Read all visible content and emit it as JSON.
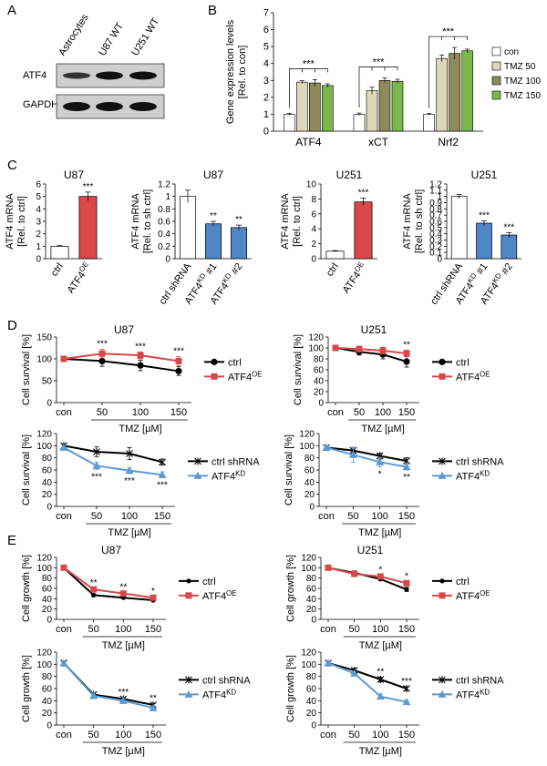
{
  "panel_labels": {
    "A": "A",
    "B": "B",
    "C": "C",
    "D": "D",
    "E": "E"
  },
  "blot": {
    "lanes": [
      "Astrocytes",
      "U87 WT",
      "U251 WT"
    ],
    "rows": [
      "ATF4",
      "GAPDH"
    ]
  },
  "colors": {
    "white": "#ffffff",
    "tmz50": "#dcd7b8",
    "tmz100": "#8f8a5c",
    "tmz150": "#7ab84a",
    "red": "#d9474a",
    "blue": "#4f86c6",
    "ctrl": "#000000",
    "kd": "#5b9bd5",
    "oe": "#d9474a"
  },
  "chart_data": [
    {
      "id": "B",
      "type": "bar",
      "ylabel_lines": [
        "Gene expression levels",
        "[Rel. to con]"
      ],
      "ylim": [
        0,
        7
      ],
      "yticks": [
        0,
        1,
        2,
        3,
        4,
        5,
        6,
        7
      ],
      "categories": [
        "ATF4",
        "xCT",
        "Nrf2"
      ],
      "series": [
        {
          "name": "con",
          "values": [
            1,
            1,
            1
          ],
          "err": [
            0.05,
            0.07,
            0.05
          ]
        },
        {
          "name": "TMZ 50",
          "values": [
            2.9,
            2.4,
            4.3
          ],
          "err": [
            0.08,
            0.2,
            0.2
          ]
        },
        {
          "name": "TMZ 100",
          "values": [
            2.85,
            3.0,
            4.6
          ],
          "err": [
            0.2,
            0.15,
            0.35
          ]
        },
        {
          "name": "TMZ 150",
          "values": [
            2.7,
            2.95,
            4.75
          ],
          "err": [
            0.1,
            0.12,
            0.1
          ]
        }
      ],
      "significance": [
        "***",
        "***",
        "***"
      ]
    },
    {
      "id": "C1",
      "type": "bar",
      "title": "U87",
      "ylabel_lines": [
        "ATF4 mRNA",
        "[Rel. to ctrl]"
      ],
      "ylim": [
        0,
        6
      ],
      "yticks": [
        0,
        1,
        2,
        3,
        4,
        5,
        6
      ],
      "categories": [
        "ctrl",
        "ATF4OE"
      ],
      "tick_labels": [
        {
          "main": "ctrl",
          "sup": ""
        },
        {
          "main": "ATF4",
          "sup": "OE"
        }
      ],
      "values": [
        1,
        5
      ],
      "err": [
        0.05,
        0.35
      ],
      "significance": [
        "",
        "***"
      ]
    },
    {
      "id": "C2",
      "type": "bar",
      "title": "U87",
      "ylabel_lines": [
        "ATF4 mRNA",
        "[Rel. to sh ctrl]"
      ],
      "ylim": [
        0,
        1.2
      ],
      "yticks": [
        0,
        0.2,
        0.4,
        0.6,
        0.8,
        1,
        1.2
      ],
      "categories": [
        "ctrl shRNA",
        "ATF4KD #1",
        "ATF4KD #2"
      ],
      "tick_labels": [
        {
          "main": "ctrl shRNA",
          "sup": ""
        },
        {
          "main": "ATF4",
          "sup": "KD",
          "suffix": " #1"
        },
        {
          "main": "ATF4",
          "sup": "KD",
          "suffix": " #2"
        }
      ],
      "values": [
        1,
        0.56,
        0.5
      ],
      "err": [
        0.1,
        0.04,
        0.04
      ],
      "significance": [
        "",
        "**",
        "**"
      ]
    },
    {
      "id": "C3",
      "type": "bar",
      "title": "U251",
      "ylabel_lines": [
        "ATF4 mRNA",
        "[Rel. to ctrl]"
      ],
      "ylim": [
        0,
        10
      ],
      "yticks": [
        0,
        2,
        4,
        6,
        8,
        10
      ],
      "categories": [
        "ctrl",
        "ATF4OE"
      ],
      "tick_labels": [
        {
          "main": "ctrl",
          "sup": ""
        },
        {
          "main": "ATF4",
          "sup": "OE"
        }
      ],
      "values": [
        1,
        7.6
      ],
      "err": [
        0.08,
        0.5
      ],
      "significance": [
        "",
        "***"
      ]
    },
    {
      "id": "C4",
      "type": "bar",
      "title": "U251",
      "ylabel_lines": [
        "ATF4 mRNA",
        "[Rel. to sh ctrl]"
      ],
      "ylim": [
        0,
        1.2
      ],
      "yticks": [
        0,
        0.1,
        0.2,
        0.3,
        0.4,
        0.5,
        0.6,
        0.7,
        0.8,
        0.9,
        1,
        1.1,
        1.2
      ],
      "categories": [
        "ctrl shRNA",
        "ATF4KD #1",
        "ATF4KD #2"
      ],
      "tick_labels": [
        {
          "main": "ctrl shRNA",
          "sup": ""
        },
        {
          "main": "ATF4",
          "sup": "KD",
          "suffix": " #1"
        },
        {
          "main": "ATF4",
          "sup": "KD",
          "suffix": " #2"
        }
      ],
      "values": [
        1,
        0.57,
        0.38
      ],
      "err": [
        0.03,
        0.04,
        0.04
      ],
      "significance": [
        "",
        "***",
        "***"
      ]
    },
    {
      "id": "D1",
      "type": "line",
      "title": "U87",
      "ylabel": "Cell survival [%]",
      "ylim": [
        0,
        150
      ],
      "yticks": [
        0,
        50,
        100,
        150
      ],
      "x": [
        "con",
        "50",
        "100",
        "150"
      ],
      "xlabel": "TMZ [µM]",
      "series": [
        {
          "name": "ctrl",
          "values": [
            100,
            95,
            85,
            72
          ],
          "err": [
            3,
            12,
            12,
            10
          ],
          "marker": "circle",
          "color": "#000000"
        },
        {
          "name": "ATF4OE",
          "values": [
            100,
            112,
            108,
            95
          ],
          "err": [
            3,
            10,
            8,
            10
          ],
          "marker": "square",
          "color": "#d9474a"
        }
      ],
      "legend": [
        {
          "main": "ctrl",
          "sup": ""
        },
        {
          "main": "ATF4",
          "sup": "OE"
        }
      ],
      "significance": [
        "",
        "***",
        "***",
        "***"
      ],
      "sig_pos": "above"
    },
    {
      "id": "D2",
      "type": "line",
      "title": "U251",
      "ylabel": "Cell survival [%]",
      "ylim": [
        0,
        120
      ],
      "yticks": [
        0,
        20,
        40,
        60,
        80,
        100,
        120
      ],
      "x": [
        "con",
        "50",
        "100",
        "150"
      ],
      "xlabel": "TMZ [µM]",
      "series": [
        {
          "name": "ctrl",
          "values": [
            100,
            93,
            88,
            75
          ],
          "err": [
            3,
            6,
            8,
            10
          ],
          "marker": "circle",
          "color": "#000000"
        },
        {
          "name": "ATF4OE",
          "values": [
            100,
            98,
            95,
            90
          ],
          "err": [
            3,
            5,
            6,
            6
          ],
          "marker": "square",
          "color": "#d9474a"
        }
      ],
      "legend": [
        {
          "main": "ctrl",
          "sup": ""
        },
        {
          "main": "ATF4",
          "sup": "OE"
        }
      ],
      "significance": [
        "",
        "",
        "",
        "**"
      ],
      "sig_pos": "above"
    },
    {
      "id": "D3",
      "type": "line",
      "ylabel": "Cell survival [%]",
      "ylim": [
        0,
        120
      ],
      "yticks": [
        0,
        20,
        40,
        60,
        80,
        100,
        120
      ],
      "x": [
        "con",
        "50",
        "100",
        "150"
      ],
      "xlabel": "TMZ [µM]",
      "series": [
        {
          "name": "ctrl shRNA",
          "values": [
            100,
            90,
            87,
            73
          ],
          "err": [
            3,
            8,
            10,
            5
          ],
          "marker": "x",
          "color": "#000000"
        },
        {
          "name": "ATF4KD",
          "values": [
            97,
            67,
            59,
            52
          ],
          "err": [
            3,
            6,
            5,
            5
          ],
          "marker": "triangle",
          "color": "#5b9bd5"
        }
      ],
      "legend": [
        {
          "main": "ctrl shRNA",
          "sup": ""
        },
        {
          "main": "ATF4",
          "sup": "KD"
        }
      ],
      "significance": [
        "",
        "***",
        "***",
        "***"
      ],
      "sig_pos": "below"
    },
    {
      "id": "D4",
      "type": "line",
      "ylabel": "Cell survival [%]",
      "ylim": [
        0,
        120
      ],
      "yticks": [
        0,
        20,
        40,
        60,
        80,
        100,
        120
      ],
      "x": [
        "con",
        "50",
        "100",
        "150"
      ],
      "xlabel": "TMZ [µM]",
      "series": [
        {
          "name": "ctrl shRNA",
          "values": [
            97,
            92,
            83,
            75
          ],
          "err": [
            3,
            5,
            5,
            5
          ],
          "marker": "x",
          "color": "#000000"
        },
        {
          "name": "ATF4KD",
          "values": [
            97,
            85,
            73,
            65
          ],
          "err": [
            3,
            12,
            8,
            5
          ],
          "marker": "triangle",
          "color": "#5b9bd5"
        }
      ],
      "legend": [
        {
          "main": "ctrl shRNA",
          "sup": ""
        },
        {
          "main": "ATF4",
          "sup": "KD"
        }
      ],
      "significance": [
        "",
        "",
        "*",
        "**"
      ],
      "sig_pos": "below"
    },
    {
      "id": "E1",
      "type": "line",
      "title": "U87",
      "ylabel": "Cell growth [%]",
      "ylim": [
        0,
        120
      ],
      "yticks": [
        0,
        20,
        40,
        60,
        80,
        100,
        120
      ],
      "x": [
        "con",
        "50",
        "100",
        "150"
      ],
      "xlabel": "TMZ [µM]",
      "series": [
        {
          "name": "ctrl",
          "values": [
            100,
            47,
            42,
            37
          ],
          "err": [
            2,
            2,
            2,
            2
          ],
          "marker": "dot",
          "color": "#000000"
        },
        {
          "name": "ATF4OE",
          "values": [
            100,
            58,
            50,
            42
          ],
          "err": [
            2,
            2,
            2,
            2
          ],
          "marker": "square",
          "color": "#d9474a"
        }
      ],
      "legend": [
        {
          "main": "ctrl",
          "sup": ""
        },
        {
          "main": "ATF4",
          "sup": "OE"
        }
      ],
      "significance": [
        "",
        "**",
        "**",
        "*"
      ],
      "sig_pos": "above"
    },
    {
      "id": "E2",
      "type": "line",
      "title": "U251",
      "ylabel": "Cell growth [%]",
      "ylim": [
        0,
        120
      ],
      "yticks": [
        0,
        20,
        40,
        60,
        80,
        100,
        120
      ],
      "x": [
        "con",
        "50",
        "100",
        "150"
      ],
      "xlabel": "TMZ [µM]",
      "series": [
        {
          "name": "ctrl",
          "values": [
            100,
            90,
            78,
            58
          ],
          "err": [
            3,
            4,
            3,
            4
          ],
          "marker": "dot",
          "color": "#000000"
        },
        {
          "name": "ATF4OE",
          "values": [
            100,
            88,
            83,
            70
          ],
          "err": [
            3,
            4,
            3,
            3
          ],
          "marker": "square",
          "color": "#d9474a"
        }
      ],
      "legend": [
        {
          "main": "ctrl",
          "sup": ""
        },
        {
          "main": "ATF4",
          "sup": "OE"
        }
      ],
      "significance": [
        "",
        "",
        "*",
        "*"
      ],
      "sig_pos": "above"
    },
    {
      "id": "E3",
      "type": "line",
      "ylabel": "Cell growth [%]",
      "ylim": [
        0,
        120
      ],
      "yticks": [
        0,
        20,
        40,
        60,
        80,
        100,
        120
      ],
      "x": [
        "con",
        "50",
        "100",
        "150"
      ],
      "xlabel": "TMZ [µM]",
      "series": [
        {
          "name": "ctrl shRNA",
          "values": [
            102,
            50,
            43,
            33
          ],
          "err": [
            2,
            2,
            2,
            2
          ],
          "marker": "x",
          "color": "#000000"
        },
        {
          "name": "ATF4KD",
          "values": [
            102,
            48,
            40,
            28
          ],
          "err": [
            2,
            2,
            2,
            2
          ],
          "marker": "triangle",
          "color": "#5b9bd5"
        }
      ],
      "legend": [
        {
          "main": "ctrl shRNA",
          "sup": ""
        },
        {
          "main": "ATF4",
          "sup": "KD"
        }
      ],
      "significance": [
        "",
        "",
        "***",
        "**"
      ],
      "sig_pos": "above"
    },
    {
      "id": "E4",
      "type": "line",
      "ylabel": "Cell growth [%]",
      "ylim": [
        0,
        120
      ],
      "yticks": [
        0,
        20,
        40,
        60,
        80,
        100,
        120
      ],
      "x": [
        "con",
        "50",
        "100",
        "150"
      ],
      "xlabel": "TMZ [µM]",
      "series": [
        {
          "name": "ctrl shRNA",
          "values": [
            102,
            90,
            75,
            60
          ],
          "err": [
            2,
            3,
            4,
            3
          ],
          "marker": "x",
          "color": "#000000"
        },
        {
          "name": "ATF4KD",
          "values": [
            102,
            85,
            47,
            38
          ],
          "err": [
            2,
            3,
            4,
            3
          ],
          "marker": "triangle",
          "color": "#5b9bd5"
        }
      ],
      "legend": [
        {
          "main": "ctrl shRNA",
          "sup": ""
        },
        {
          "main": "ATF4",
          "sup": "KD"
        }
      ],
      "significance": [
        "",
        "",
        "**",
        "***"
      ],
      "sig_pos": "above"
    }
  ]
}
